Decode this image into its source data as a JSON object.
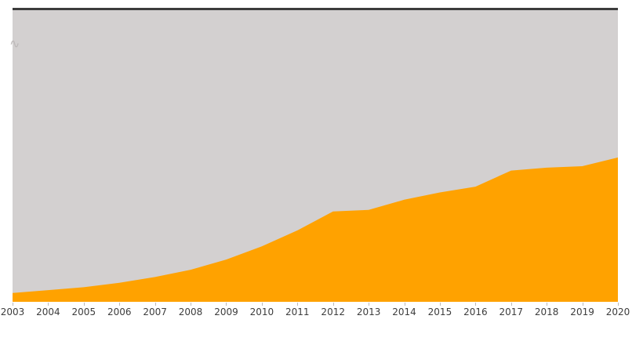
{
  "chart_data": {
    "type": "area",
    "title": "",
    "xlabel": "",
    "ylabel": "",
    "categories": [
      "2003",
      "2004",
      "2005",
      "2006",
      "2007",
      "2008",
      "2009",
      "2010",
      "2011",
      "2012",
      "2013",
      "2014",
      "2015",
      "2016",
      "2017",
      "2018",
      "2019",
      "2020"
    ],
    "values": [
      3,
      4,
      5,
      6.5,
      8.5,
      11,
      14.5,
      19,
      24.5,
      31,
      31.5,
      35,
      37.5,
      39.5,
      45,
      46,
      46.5,
      49.5
    ],
    "ylim": [
      0,
      100
    ],
    "grid": false,
    "legend": "none",
    "colors": {
      "area": "#FFA200",
      "plot_background": "#D3D0D0",
      "top_border": "#3C3C3C",
      "axis_label": "#3D3D3D",
      "tick": "#BDBABA"
    }
  },
  "icons": {
    "squiggle": "∿"
  }
}
